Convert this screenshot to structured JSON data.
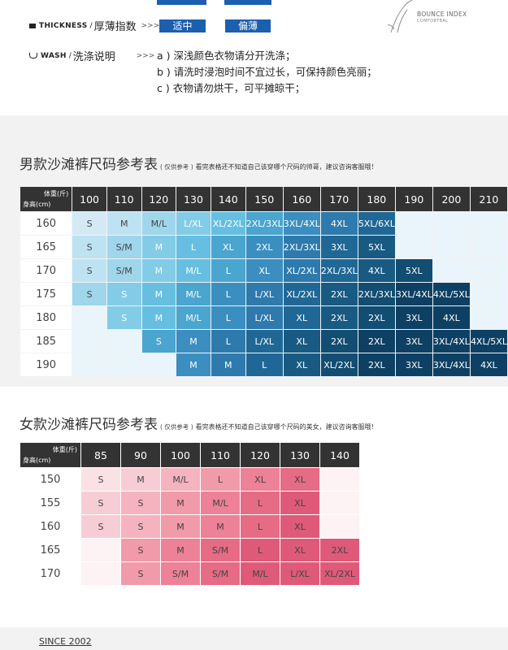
{
  "thickness": {
    "label_en": "THICKNESS",
    "label_zh": "厚薄指数",
    "arrows": ">>>",
    "options": [
      "适中",
      "偏薄"
    ]
  },
  "wash": {
    "label_en": "WASH",
    "label_zh": "洗涤说明",
    "arrows": ">>>",
    "lines": [
      "a ) 深浅颜色衣物请分开洗涤；",
      "b ) 请洗时浸泡时间不宜过长，可保持颜色亮丽；",
      "c ) 衣物请勿烘干，可平摊晾干；"
    ]
  },
  "brand": {
    "name": "BOUNCE INDEX",
    "sub": "COMFORTBAL"
  },
  "men_chart": {
    "title": "男款沙滩裤尺码参考表",
    "note": "( 仅供参考 )",
    "subtitle": "看完表格还不知道自己该穿哪个尺码的帅哥，建议咨询客服哦！",
    "corner_weight": "体重(斤)",
    "corner_height": "身高(cm)",
    "weights": [
      "100",
      "110",
      "120",
      "130",
      "140",
      "150",
      "160",
      "170",
      "180",
      "190",
      "200",
      "210"
    ],
    "heights": [
      "160",
      "165",
      "170",
      "175",
      "180",
      "185",
      "190"
    ],
    "rows": [
      [
        "S",
        "M",
        "M/L",
        "L/XL",
        "XL/2XL",
        "2XL/3XL",
        "3XL/4XL",
        "4XL",
        "5XL/6XL",
        "",
        "",
        ""
      ],
      [
        "S",
        "S/M",
        "M",
        "L",
        "XL",
        "2XL",
        "2XL/3XL",
        "3XL",
        "5XL",
        "",
        "",
        ""
      ],
      [
        "S",
        "S/M",
        "M",
        "M/L",
        "L",
        "XL",
        "XL/2XL",
        "2XL/3XL",
        "4XL",
        "5XL",
        "",
        ""
      ],
      [
        "S",
        "S",
        "M",
        "M/L",
        "L",
        "L/XL",
        "XL/2XL",
        "2XL",
        "2XL/3XL",
        "3XL/4XL",
        "4XL/5XL",
        ""
      ],
      [
        "",
        "S",
        "M",
        "M/L",
        "L",
        "L/XL",
        "XL",
        "2XL",
        "2XL",
        "3XL",
        "4XL",
        ""
      ],
      [
        "",
        "",
        "S",
        "M",
        "L",
        "L/XL",
        "XL",
        "2XL",
        "2XL",
        "3XL",
        "3XL/4XL",
        "4XL/5XL"
      ],
      [
        "",
        "",
        "",
        "M",
        "M",
        "L",
        "XL",
        "XL/2XL",
        "2XL",
        "3XL",
        "3XL/4XL",
        "4XL"
      ]
    ]
  },
  "women_chart": {
    "title": "女款沙滩裤尺码参考表",
    "note": "( 仅供参考 )",
    "subtitle": "看完表格还不知道自己该穿哪个尺码的美女，建议咨询客服哦！",
    "corner_weight": "体重(斤)",
    "corner_height": "身高(cm)",
    "weights": [
      "85",
      "90",
      "100",
      "110",
      "120",
      "130",
      "140"
    ],
    "heights": [
      "150",
      "155",
      "160",
      "165",
      "170"
    ],
    "rows": [
      [
        "S",
        "M",
        "M/L",
        "L",
        "XL",
        "XL",
        ""
      ],
      [
        "S",
        "S",
        "M",
        "M/L",
        "L",
        "XL",
        ""
      ],
      [
        "S",
        "S",
        "M",
        "M",
        "L",
        "XL",
        ""
      ],
      [
        "",
        "S",
        "M",
        "S/M",
        "L",
        "XL",
        "2XL"
      ],
      [
        "",
        "S",
        "S/M",
        "S/M",
        "M/L",
        "L/XL",
        "XL/2XL"
      ]
    ]
  },
  "footer": {
    "since": "SINCE 2002"
  },
  "colors": {
    "header_dark": "#333333",
    "accent_blue": "#1b5fae",
    "men_ramp": [
      "#eaf5fb",
      "#d3eaf6",
      "#bde3f2",
      "#9fd6ec",
      "#82cce8",
      "#66bfe1",
      "#4aa5cf",
      "#3b8ec0",
      "#2e7aad",
      "#1f6896",
      "#185a82",
      "#124d72",
      "#0e4064"
    ],
    "women_ramp": [
      "#fdf2f4",
      "#fae1e6",
      "#f7cdd5",
      "#f4b3bf",
      "#f19aa9",
      "#ec8197",
      "#e66b85",
      "#df5a79"
    ]
  }
}
